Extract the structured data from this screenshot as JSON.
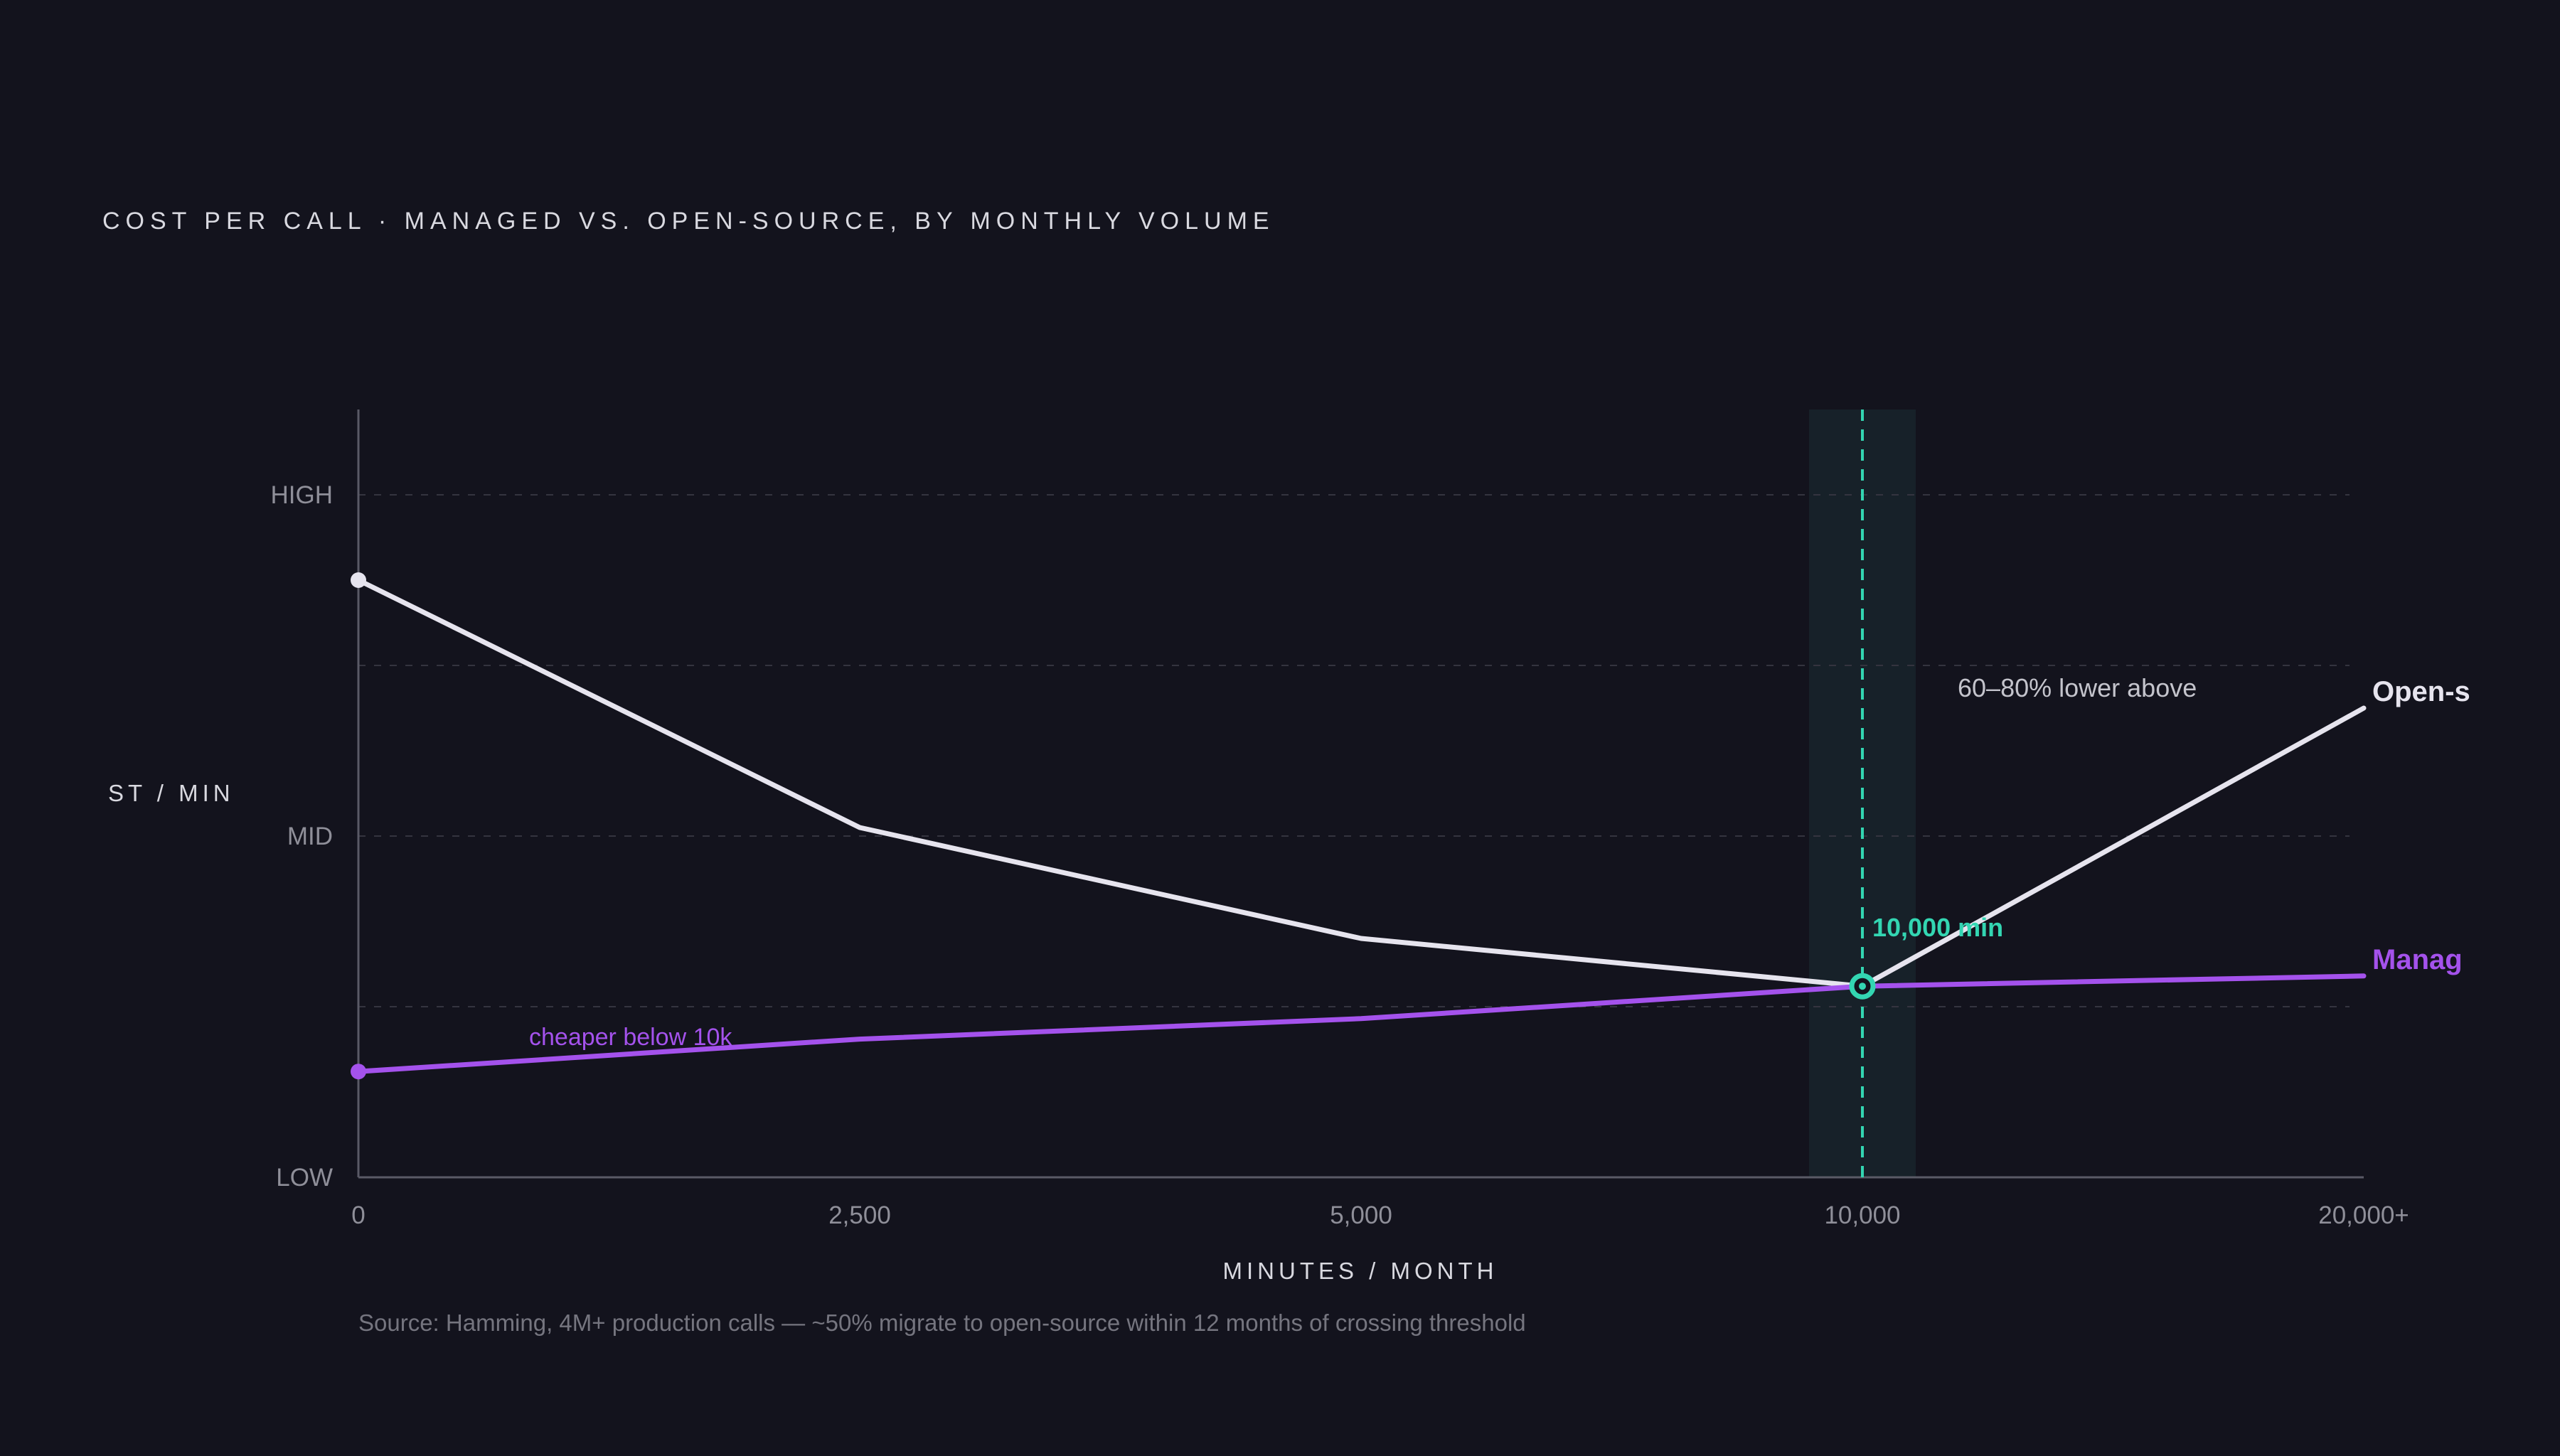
{
  "colors": {
    "background": "#13131d",
    "open_source": "#e6e4ee",
    "managed": "#a452ec",
    "threshold": "#33d6b2",
    "band": "#172129"
  },
  "chart_data": {
    "type": "line",
    "title": "COST PER CALL · MANAGED VS. OPEN-SOURCE, BY MONTHLY VOLUME",
    "xlabel": "MINUTES / MONTH",
    "ylabel": "ST / MIN",
    "categories": [
      "0",
      "2,500",
      "5,000",
      "10,000",
      "20,000+"
    ],
    "y_ticks": [
      "HIGH",
      "MID",
      "LOW"
    ],
    "ylim": [
      0,
      4.5
    ],
    "y_tick_values": [
      4,
      2,
      0
    ],
    "grid": true,
    "series": [
      {
        "name": "Open-source",
        "display_label": "Open-s",
        "values": [
          3.5,
          2.05,
          1.4,
          1.12,
          2.75
        ]
      },
      {
        "name": "Managed",
        "display_label": "Manag",
        "values": [
          0.62,
          0.81,
          0.93,
          1.12,
          1.18
        ]
      }
    ],
    "threshold": {
      "category": "10,000",
      "value": 1.12,
      "label": "10,000 min"
    },
    "annotations": {
      "open_source_note": "60–80% lower above",
      "managed_note": "cheaper below 10k"
    },
    "source": "Source: Hamming, 4M+ production calls — ~50% migrate to open-source within 12 months of crossing threshold"
  }
}
